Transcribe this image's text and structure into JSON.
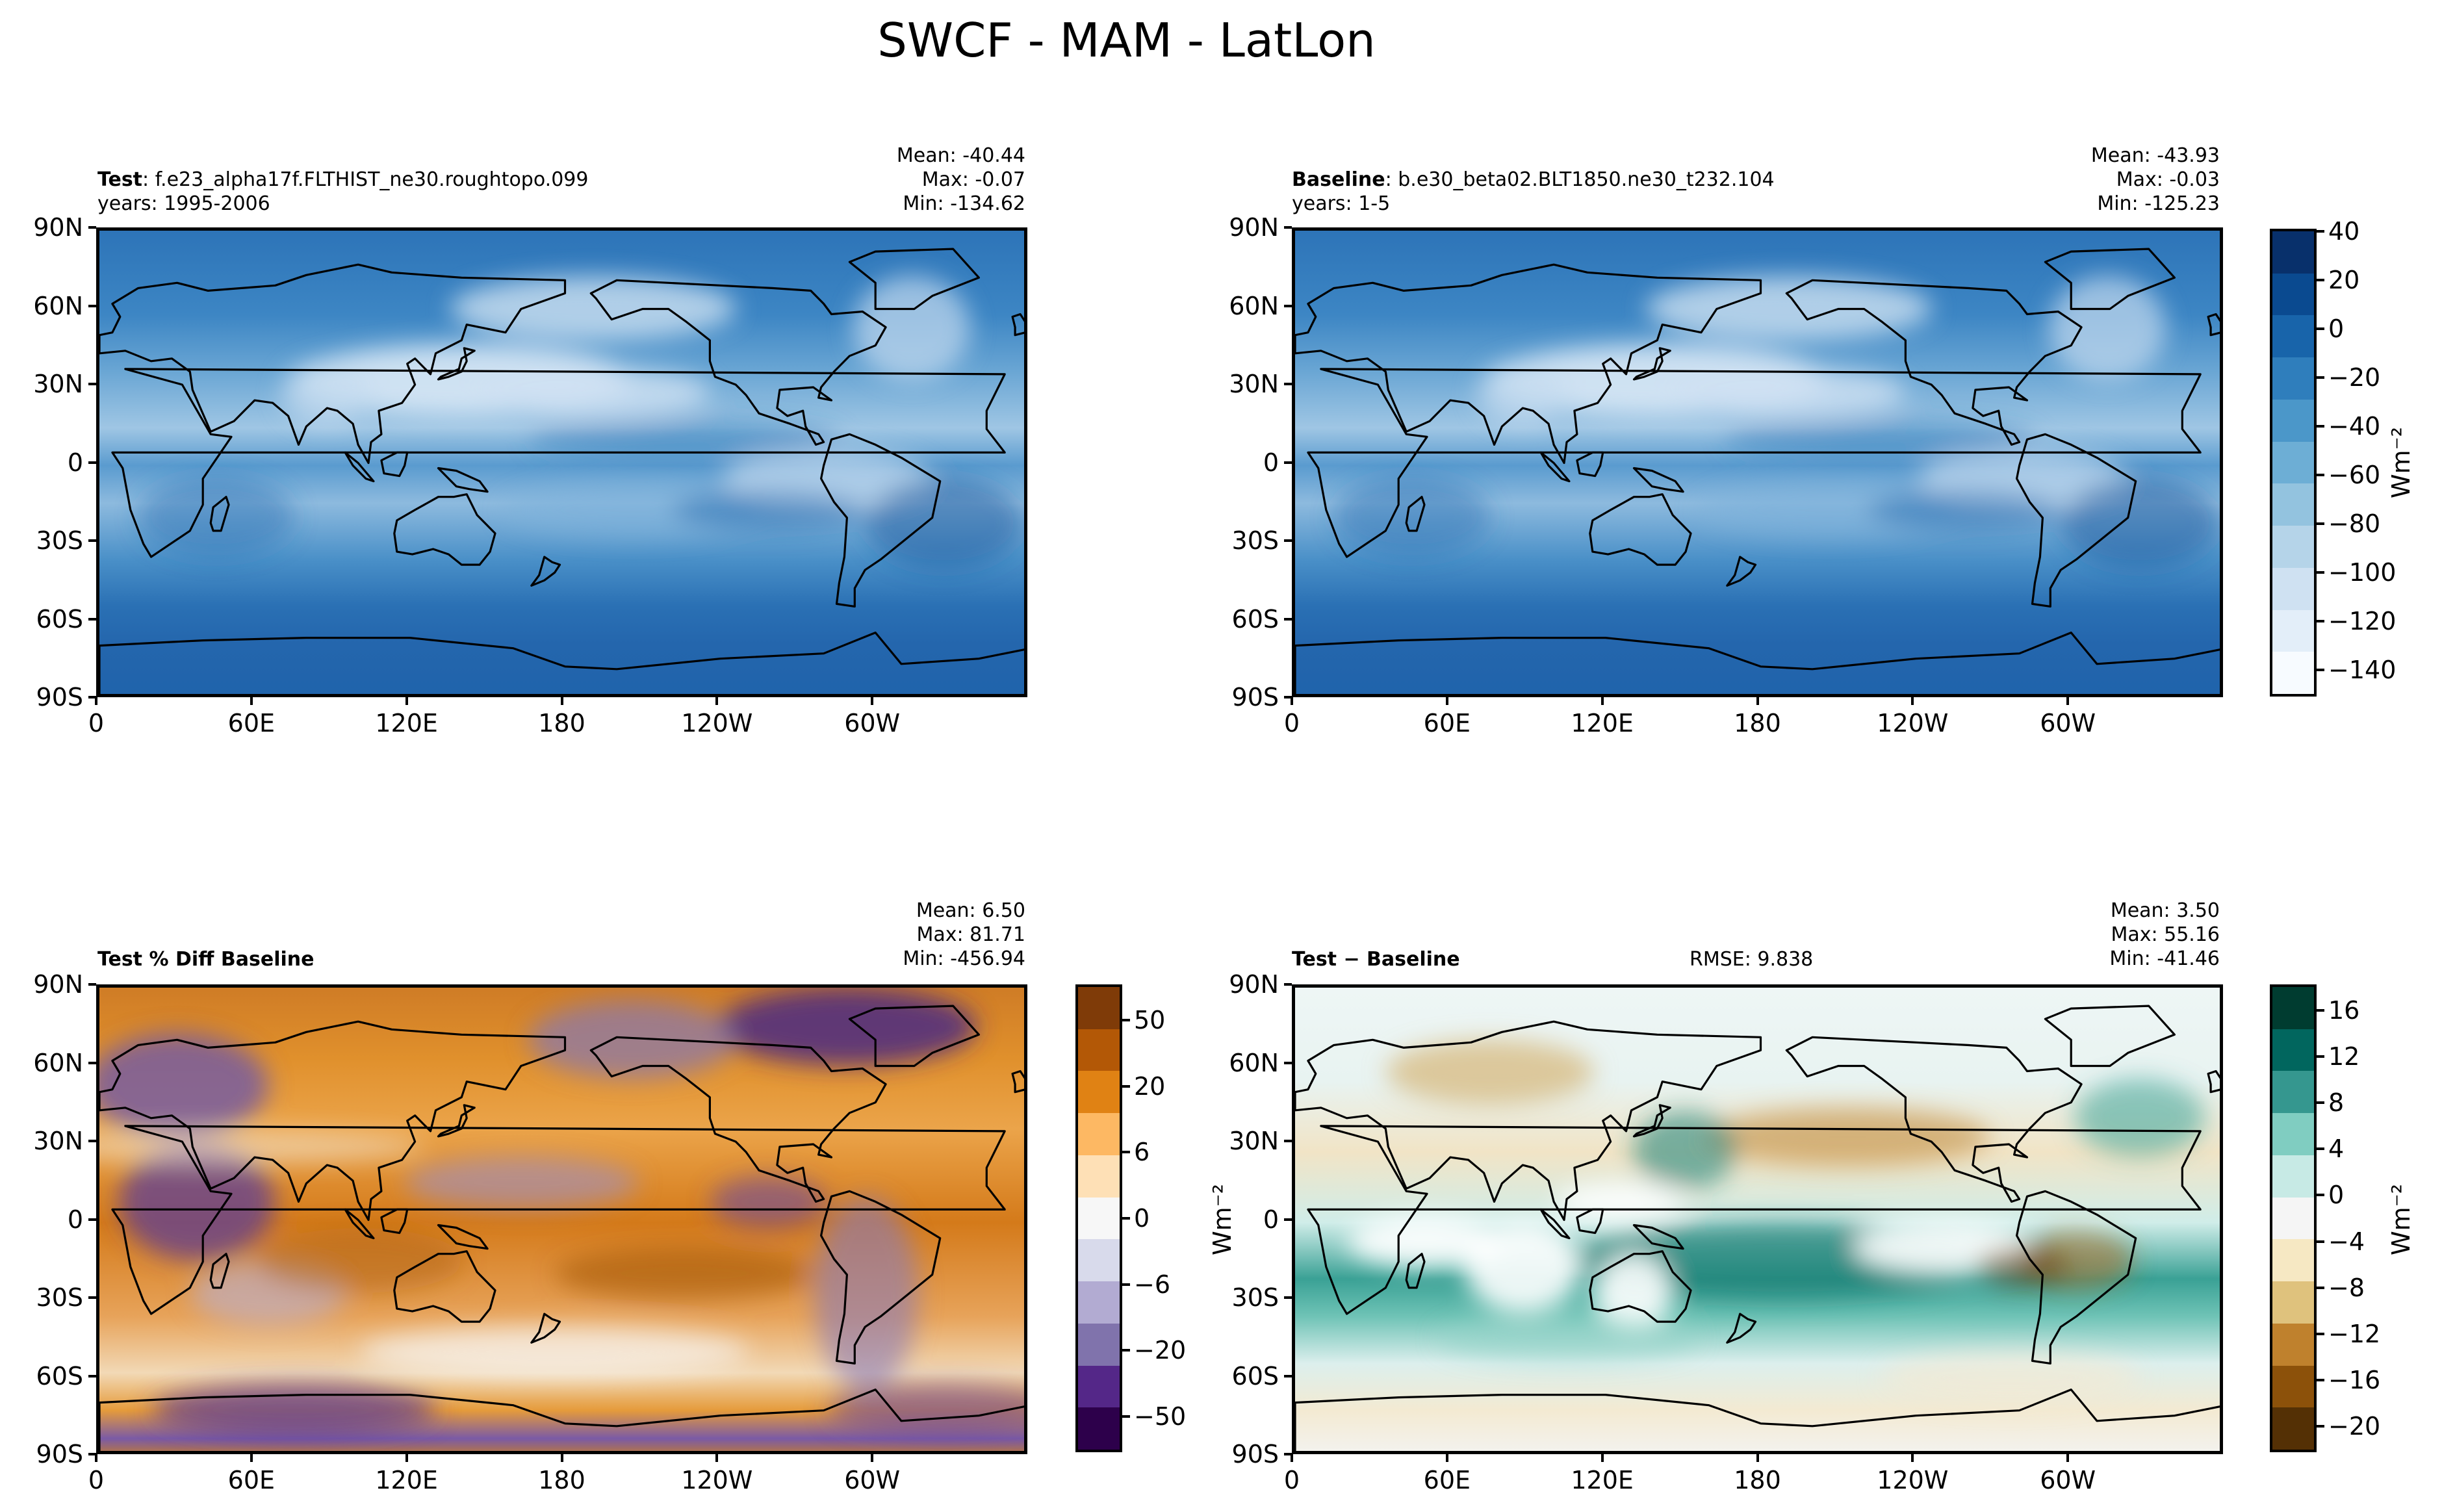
{
  "figure": {
    "title": "SWCF - MAM - LatLon"
  },
  "axes": {
    "lat_ticks": [
      "90N",
      "60N",
      "30N",
      "0",
      "30S",
      "60S",
      "90S"
    ],
    "lon_ticks": [
      "0",
      "60E",
      "120E",
      "180",
      "120W",
      "60W"
    ]
  },
  "panels": [
    {
      "id": "test",
      "label_bold": "Test",
      "label_rest": ": f.e23_alpha17f.FLTHIST_ne30.roughtopo.099",
      "years": "years: 1995-2006",
      "center_text": "",
      "stats": [
        "Mean: -40.44",
        "Max: -0.07",
        "Min: -134.62"
      ]
    },
    {
      "id": "baseline",
      "label_bold": "Baseline",
      "label_rest": ": b.e30_beta02.BLT1850.ne30_t232.104",
      "years": "years: 1-5",
      "center_text": "",
      "stats": [
        "Mean: -43.93",
        "Max: -0.03",
        "Min: -125.23"
      ]
    },
    {
      "id": "pctdiff",
      "label_bold": "Test % Diff Baseline",
      "label_rest": "",
      "years": "",
      "center_text": "",
      "stats": [
        "Mean:  6.50",
        "Max: 81.71",
        "Min: -456.94"
      ]
    },
    {
      "id": "diff",
      "label_bold": "Test − Baseline",
      "label_rest": "",
      "years": "",
      "center_text": "RMSE: 9.838",
      "stats": [
        "Mean:  3.50",
        "Max: 55.16",
        "Min: -41.46"
      ]
    }
  ],
  "colorbars": {
    "main": {
      "ticks": [
        "40",
        "20",
        "0",
        "−20",
        "−40",
        "−60",
        "−80",
        "−100",
        "−120",
        "−140"
      ],
      "tick_values": [
        40,
        20,
        0,
        -20,
        -40,
        -60,
        -80,
        -100,
        -120,
        -140
      ],
      "range": [
        -150,
        40
      ],
      "unit": "Wm⁻²",
      "colors": [
        "#f7fbff",
        "#e3eef9",
        "#cfe1f2",
        "#b5d4e9",
        "#93c3df",
        "#6daed5",
        "#4b97c9",
        "#2f7ebc",
        "#1864aa",
        "#0a4a90",
        "#08306b"
      ]
    },
    "pct": {
      "ticks": [
        "50",
        "20",
        "6",
        "0",
        "−6",
        "−20",
        "−50"
      ],
      "unit": "",
      "colors": [
        "#2d004b",
        "#542788",
        "#8073ac",
        "#b2abd2",
        "#d8daeb",
        "#f7f7f7",
        "#fee0b6",
        "#fdb863",
        "#e08214",
        "#b35806",
        "#7f3b08"
      ]
    },
    "diff": {
      "ticks": [
        "16",
        "12",
        "8",
        "4",
        "0",
        "−4",
        "−8",
        "−12",
        "−16",
        "−20"
      ],
      "unit": "Wm⁻²",
      "colors": [
        "#543005",
        "#8c510a",
        "#bf812d",
        "#dfc27d",
        "#f6e8c3",
        "#f5f5f5",
        "#c7eae5",
        "#80cdc1",
        "#35978f",
        "#01665e",
        "#003c30"
      ]
    }
  },
  "chart_data": [
    {
      "type": "heatmap",
      "title": "Test: f.e23_alpha17f.FLTHIST_ne30.roughtopo.099",
      "subtitle": "years: 1995-2006",
      "variable": "SWCF",
      "units": "Wm⁻²",
      "stats": {
        "mean": -40.44,
        "max": -0.07,
        "min": -134.62
      },
      "xticks": [
        "0",
        "60E",
        "120E",
        "180",
        "120W",
        "60W"
      ],
      "yticks": [
        "90N",
        "60N",
        "30N",
        "0",
        "30S",
        "60S",
        "90S"
      ],
      "color_range": [
        -150,
        40
      ]
    },
    {
      "type": "heatmap",
      "title": "Baseline: b.e30_beta02.BLT1850.ne30_t232.104",
      "subtitle": "years: 1-5",
      "variable": "SWCF",
      "units": "Wm⁻²",
      "stats": {
        "mean": -43.93,
        "max": -0.03,
        "min": -125.23
      },
      "xticks": [
        "0",
        "60E",
        "120E",
        "180",
        "120W",
        "60W"
      ],
      "yticks": [
        "90N",
        "60N",
        "30N",
        "0",
        "30S",
        "60S",
        "90S"
      ],
      "color_range": [
        -150,
        40
      ]
    },
    {
      "type": "heatmap",
      "title": "Test % Diff Baseline",
      "stats": {
        "mean": 6.5,
        "max": 81.71,
        "min": -456.94
      },
      "color_levels": [
        -50,
        -20,
        -6,
        0,
        6,
        20,
        50
      ],
      "xticks": [
        "0",
        "60E",
        "120E",
        "180",
        "120W",
        "60W"
      ],
      "yticks": [
        "90N",
        "60N",
        "30N",
        "0",
        "30S",
        "60S",
        "90S"
      ]
    },
    {
      "type": "heatmap",
      "title": "Test − Baseline",
      "rmse": 9.838,
      "units": "Wm⁻²",
      "stats": {
        "mean": 3.5,
        "max": 55.16,
        "min": -41.46
      },
      "color_range": [
        -20,
        18
      ],
      "xticks": [
        "0",
        "60E",
        "120E",
        "180",
        "120W",
        "60W"
      ],
      "yticks": [
        "90N",
        "60N",
        "30N",
        "0",
        "30S",
        "60S",
        "90S"
      ]
    }
  ]
}
